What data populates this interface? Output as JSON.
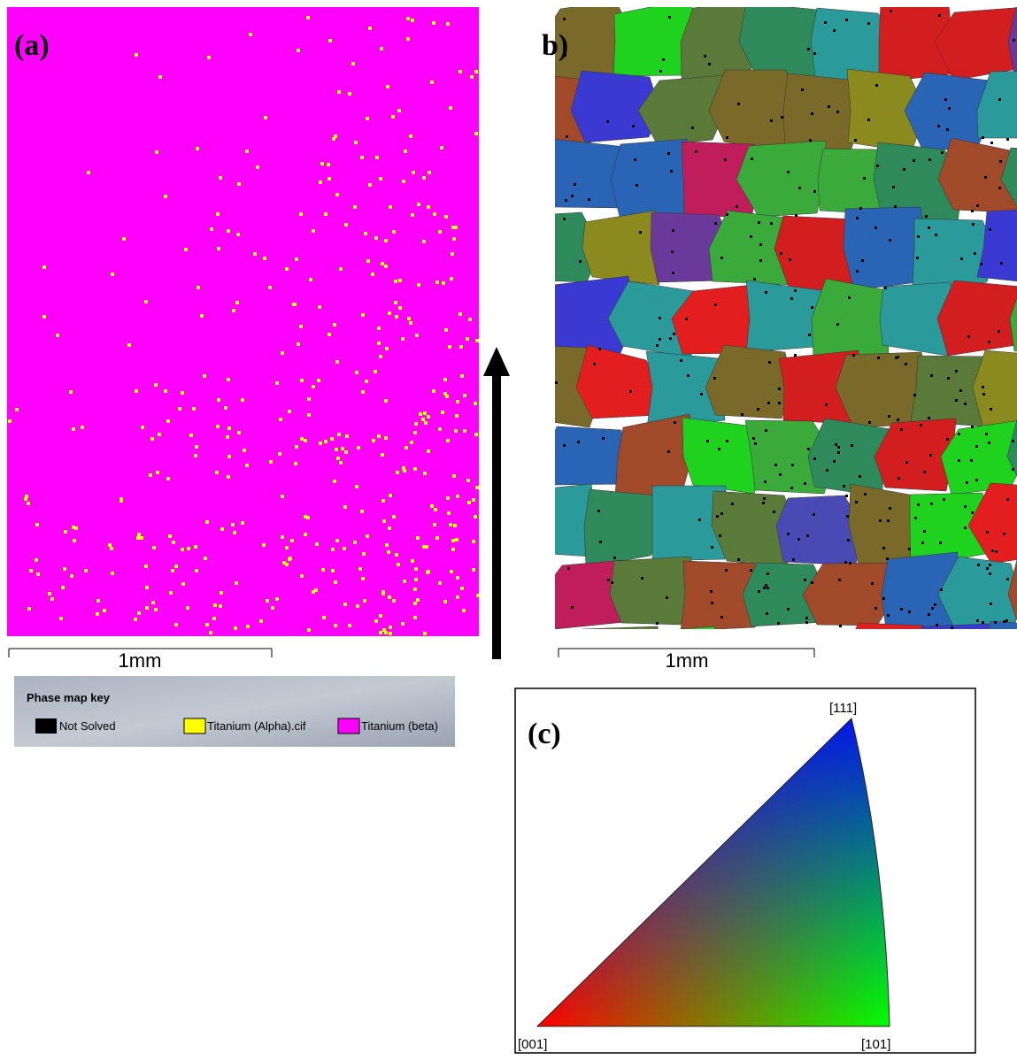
{
  "figure": {
    "panel_a": {
      "label": "(a)",
      "scale_bar": "1mm"
    },
    "panel_b": {
      "label": "b)",
      "scale_bar": "1mm"
    },
    "phase_key": {
      "title": "Phase map key",
      "entries": [
        "Not Solved",
        "Titanium (Alpha).cif",
        "Titanium (beta)"
      ]
    },
    "panel_c": {
      "label": "(c)",
      "corners": [
        "[001]",
        "[101]",
        "[111]"
      ]
    }
  }
}
